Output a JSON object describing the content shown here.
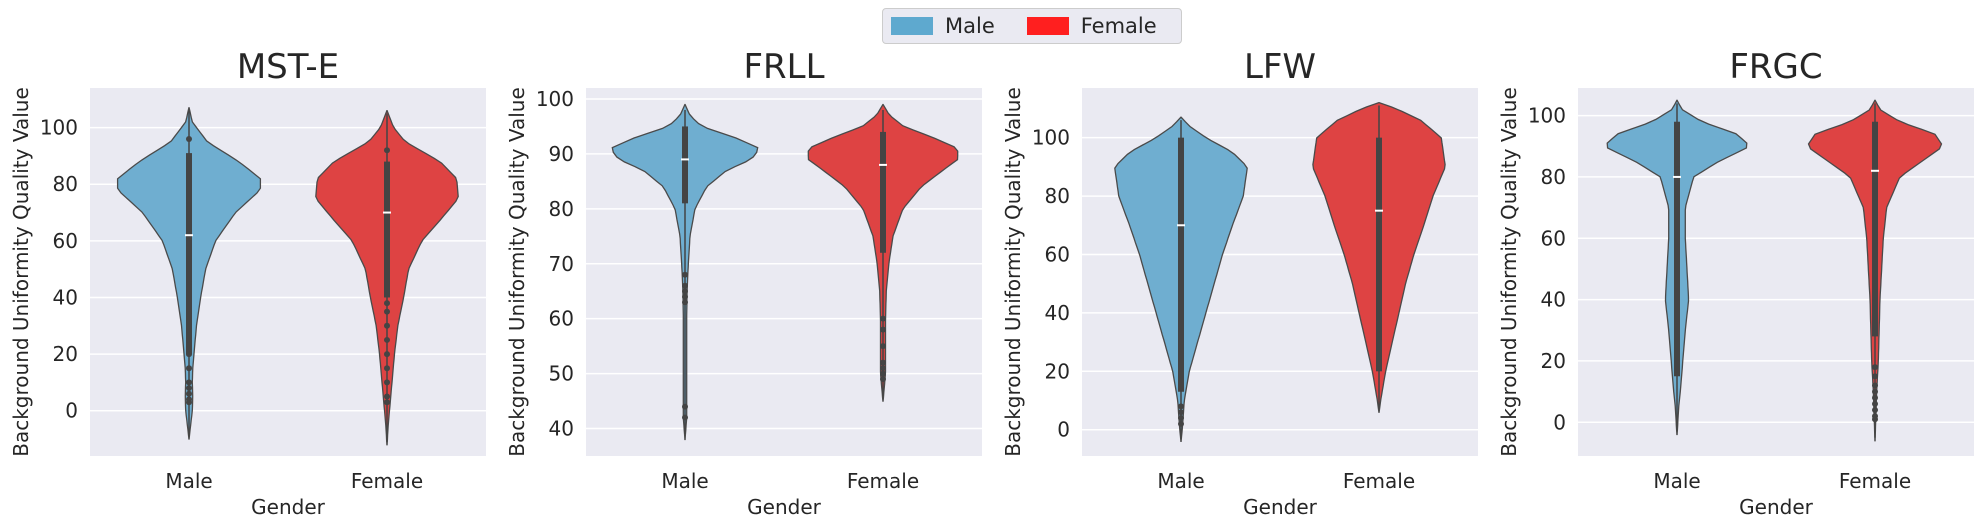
{
  "legend": {
    "items": [
      {
        "label": "Male",
        "color": "#5ea9cf"
      },
      {
        "label": "Female",
        "color": "#ff1f1f"
      }
    ]
  },
  "chart_data": [
    {
      "type": "violin",
      "title": "MST-E",
      "xlabel": "Gender",
      "ylabel": "Background Uniformity Quality Value",
      "categories": [
        "Male",
        "Female"
      ],
      "ylim": [
        -16,
        114
      ],
      "yticks": [
        0,
        20,
        40,
        60,
        80,
        100
      ],
      "grid": true,
      "series": [
        {
          "name": "Male",
          "color": "#6faed0",
          "range": [
            -10,
            107
          ],
          "density": [
            [
              -10,
              0.001
            ],
            [
              -5,
              0.02
            ],
            [
              0,
              0.04
            ],
            [
              5,
              0.045
            ],
            [
              10,
              0.04
            ],
            [
              15,
              0.045
            ],
            [
              20,
              0.06
            ],
            [
              30,
              0.09
            ],
            [
              40,
              0.14
            ],
            [
              50,
              0.2
            ],
            [
              60,
              0.32
            ],
            [
              70,
              0.56
            ],
            [
              78,
              0.86
            ],
            [
              82,
              0.86
            ],
            [
              88,
              0.6
            ],
            [
              95,
              0.22
            ],
            [
              102,
              0.04
            ],
            [
              107,
              0.001
            ]
          ],
          "box": {
            "q1": 20,
            "median": 62,
            "q3": 91,
            "wlow": 2,
            "whigh": 91
          },
          "outliers": [
            96,
            45,
            40,
            35,
            30,
            25,
            20,
            15,
            10,
            8,
            6,
            4,
            3
          ]
        },
        {
          "name": "Female",
          "color": "#de4343",
          "range": [
            -12,
            106
          ],
          "density": [
            [
              -12,
              0.001
            ],
            [
              -5,
              0.015
            ],
            [
              0,
              0.03
            ],
            [
              10,
              0.06
            ],
            [
              20,
              0.09
            ],
            [
              30,
              0.13
            ],
            [
              40,
              0.2
            ],
            [
              50,
              0.26
            ],
            [
              60,
              0.42
            ],
            [
              68,
              0.66
            ],
            [
              75,
              0.86
            ],
            [
              82,
              0.84
            ],
            [
              88,
              0.64
            ],
            [
              95,
              0.22
            ],
            [
              100,
              0.08
            ],
            [
              106,
              0.001
            ]
          ],
          "box": {
            "q1": 40,
            "median": 70,
            "q3": 88,
            "wlow": 2,
            "whigh": 88
          },
          "outliers": [
            92,
            38,
            35,
            30,
            25,
            20,
            15,
            10,
            5,
            3
          ]
        }
      ]
    },
    {
      "type": "violin",
      "title": "FRLL",
      "xlabel": "Gender",
      "ylabel": "Background Uniformity Quality Value",
      "categories": [
        "Male",
        "Female"
      ],
      "ylim": [
        35,
        102
      ],
      "yticks": [
        40,
        50,
        60,
        70,
        80,
        90,
        100
      ],
      "grid": true,
      "series": [
        {
          "name": "Male",
          "color": "#6faed0",
          "range": [
            38,
            99
          ],
          "density": [
            [
              38,
              0.001
            ],
            [
              42,
              0.02
            ],
            [
              50,
              0.02
            ],
            [
              60,
              0.02
            ],
            [
              65,
              0.025
            ],
            [
              70,
              0.04
            ],
            [
              75,
              0.06
            ],
            [
              80,
              0.12
            ],
            [
              84,
              0.26
            ],
            [
              87,
              0.5
            ],
            [
              89,
              0.8
            ],
            [
              91,
              0.9
            ],
            [
              93,
              0.6
            ],
            [
              95,
              0.2
            ],
            [
              97,
              0.06
            ],
            [
              99,
              0.001
            ]
          ],
          "box": {
            "q1": 81,
            "median": 89,
            "q3": 95,
            "wlow": 75,
            "whigh": 95
          },
          "outliers": [
            68,
            66,
            65,
            64,
            63,
            44,
            42
          ]
        },
        {
          "name": "Female",
          "color": "#de4343",
          "range": [
            45,
            99
          ],
          "density": [
            [
              45,
              0.001
            ],
            [
              50,
              0.03
            ],
            [
              55,
              0.03
            ],
            [
              60,
              0.03
            ],
            [
              65,
              0.04
            ],
            [
              70,
              0.07
            ],
            [
              75,
              0.12
            ],
            [
              80,
              0.24
            ],
            [
              84,
              0.46
            ],
            [
              87,
              0.72
            ],
            [
              89,
              0.9
            ],
            [
              91,
              0.9
            ],
            [
              93,
              0.6
            ],
            [
              95,
              0.25
            ],
            [
              97,
              0.08
            ],
            [
              99,
              0.001
            ]
          ],
          "box": {
            "q1": 72,
            "median": 88,
            "q3": 94,
            "wlow": 62,
            "whigh": 94
          },
          "outliers": [
            60,
            58,
            55,
            52,
            51,
            50,
            49
          ]
        }
      ]
    },
    {
      "type": "violin",
      "title": "LFW",
      "xlabel": "Gender",
      "ylabel": "Background Uniformity Quality Value",
      "categories": [
        "Male",
        "Female"
      ],
      "ylim": [
        -9,
        117
      ],
      "yticks": [
        0,
        20,
        40,
        60,
        80,
        100
      ],
      "grid": true,
      "series": [
        {
          "name": "Male",
          "color": "#6faed0",
          "range": [
            -4,
            107
          ],
          "density": [
            [
              -4,
              0.001
            ],
            [
              0,
              0.015
            ],
            [
              10,
              0.04
            ],
            [
              20,
              0.1
            ],
            [
              30,
              0.2
            ],
            [
              40,
              0.3
            ],
            [
              50,
              0.4
            ],
            [
              60,
              0.5
            ],
            [
              70,
              0.62
            ],
            [
              80,
              0.75
            ],
            [
              90,
              0.8
            ],
            [
              95,
              0.62
            ],
            [
              100,
              0.3
            ],
            [
              104,
              0.1
            ],
            [
              107,
              0.001
            ]
          ],
          "box": {
            "q1": 13,
            "median": 70,
            "q3": 100,
            "wlow": 10,
            "whigh": 100
          },
          "outliers": [
            8,
            6,
            4,
            2
          ]
        },
        {
          "name": "Female",
          "color": "#de4343",
          "range": [
            6,
            112
          ],
          "density": [
            [
              6,
              0.001
            ],
            [
              10,
              0.02
            ],
            [
              20,
              0.08
            ],
            [
              30,
              0.16
            ],
            [
              40,
              0.24
            ],
            [
              50,
              0.32
            ],
            [
              60,
              0.42
            ],
            [
              70,
              0.54
            ],
            [
              80,
              0.65
            ],
            [
              90,
              0.8
            ],
            [
              100,
              0.75
            ],
            [
              106,
              0.5
            ],
            [
              110,
              0.2
            ],
            [
              112,
              0.001
            ]
          ],
          "box": {
            "q1": 20,
            "median": 75,
            "q3": 100,
            "wlow": 18,
            "whigh": 100
          },
          "outliers": []
        }
      ]
    },
    {
      "type": "violin",
      "title": "FRGC",
      "xlabel": "Gender",
      "ylabel": "Background Uniformity Quality Value",
      "categories": [
        "Male",
        "Female"
      ],
      "ylim": [
        -11,
        109
      ],
      "yticks": [
        0,
        20,
        40,
        60,
        80,
        100
      ],
      "grid": true,
      "series": [
        {
          "name": "Male",
          "color": "#6faed0",
          "range": [
            -4,
            105
          ],
          "density": [
            [
              -4,
              0.001
            ],
            [
              0,
              0.01
            ],
            [
              5,
              0.02
            ],
            [
              10,
              0.04
            ],
            [
              20,
              0.07
            ],
            [
              30,
              0.1
            ],
            [
              40,
              0.14
            ],
            [
              50,
              0.12
            ],
            [
              60,
              0.1
            ],
            [
              70,
              0.1
            ],
            [
              80,
              0.2
            ],
            [
              85,
              0.5
            ],
            [
              90,
              0.88
            ],
            [
              94,
              0.72
            ],
            [
              98,
              0.3
            ],
            [
              102,
              0.06
            ],
            [
              105,
              0.001
            ]
          ],
          "box": {
            "q1": 15,
            "median": 80,
            "q3": 98,
            "wlow": 3,
            "whigh": 98
          },
          "outliers": []
        },
        {
          "name": "Female",
          "color": "#de4343",
          "range": [
            -6,
            105
          ],
          "density": [
            [
              -6,
              0.001
            ],
            [
              0,
              0.008
            ],
            [
              10,
              0.02
            ],
            [
              20,
              0.04
            ],
            [
              30,
              0.05
            ],
            [
              40,
              0.06
            ],
            [
              50,
              0.08
            ],
            [
              60,
              0.1
            ],
            [
              70,
              0.14
            ],
            [
              80,
              0.3
            ],
            [
              85,
              0.56
            ],
            [
              90,
              0.82
            ],
            [
              94,
              0.72
            ],
            [
              98,
              0.3
            ],
            [
              102,
              0.06
            ],
            [
              105,
              0.001
            ]
          ],
          "box": {
            "q1": 28,
            "median": 82,
            "q3": 98,
            "wlow": 20,
            "whigh": 98
          },
          "outliers": [
            18,
            15,
            12,
            10,
            8,
            6,
            4,
            2,
            1
          ]
        }
      ]
    }
  ]
}
